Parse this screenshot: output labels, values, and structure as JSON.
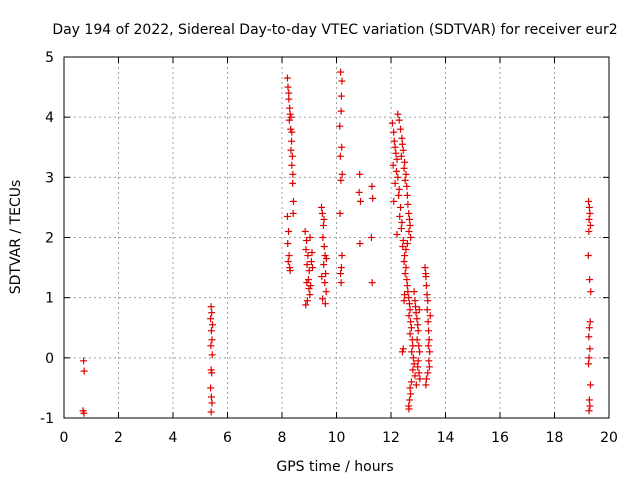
{
  "chart_data": {
    "type": "scatter",
    "title": "Day 194 of 2022, Sidereal Day-to-day VTEC variation (SDTVAR) for receiver eur2",
    "xlabel": "GPS time / hours",
    "ylabel": "SDTVAR / TECUs",
    "xlim": [
      0,
      20
    ],
    "ylim": [
      -1,
      5
    ],
    "xticks": [
      "0",
      "2",
      "4",
      "6",
      "8",
      "10",
      "12",
      "14",
      "16",
      "18",
      "20"
    ],
    "yticks": [
      "-1",
      "0",
      "1",
      "2",
      "3",
      "4",
      "5"
    ],
    "grid": true,
    "marker": "+",
    "color": "#e00000",
    "series": [
      {
        "name": "SDTVAR",
        "points": [
          [
            0.72,
            -0.05
          ],
          [
            0.74,
            -0.22
          ],
          [
            0.7,
            -0.88
          ],
          [
            0.73,
            -0.92
          ],
          [
            5.4,
            0.85
          ],
          [
            5.42,
            0.75
          ],
          [
            5.38,
            0.65
          ],
          [
            5.45,
            0.55
          ],
          [
            5.41,
            0.45
          ],
          [
            5.43,
            0.3
          ],
          [
            5.39,
            0.2
          ],
          [
            5.44,
            0.05
          ],
          [
            5.4,
            -0.2
          ],
          [
            5.42,
            -0.25
          ],
          [
            5.38,
            -0.5
          ],
          [
            5.41,
            -0.65
          ],
          [
            5.43,
            -0.75
          ],
          [
            5.4,
            -0.9
          ],
          [
            8.2,
            4.65
          ],
          [
            8.22,
            4.5
          ],
          [
            8.25,
            4.3
          ],
          [
            8.28,
            4.15
          ],
          [
            8.3,
            4.05
          ],
          [
            8.27,
            3.95
          ],
          [
            8.32,
            3.8
          ],
          [
            8.35,
            3.6
          ],
          [
            8.33,
            3.45
          ],
          [
            8.38,
            3.35
          ],
          [
            8.36,
            3.2
          ],
          [
            8.4,
            3.05
          ],
          [
            8.39,
            2.9
          ],
          [
            8.42,
            2.6
          ],
          [
            8.41,
            2.4
          ],
          [
            8.2,
            2.35
          ],
          [
            8.24,
            2.1
          ],
          [
            8.21,
            1.9
          ],
          [
            8.26,
            1.7
          ],
          [
            8.23,
            1.6
          ],
          [
            8.28,
            1.5
          ],
          [
            8.3,
            1.45
          ],
          [
            8.33,
            4.0
          ],
          [
            8.36,
            3.75
          ],
          [
            8.25,
            4.4
          ],
          [
            8.85,
            2.1
          ],
          [
            8.9,
            1.95
          ],
          [
            8.88,
            1.8
          ],
          [
            8.95,
            1.7
          ],
          [
            8.92,
            1.55
          ],
          [
            9.0,
            1.45
          ],
          [
            8.97,
            1.3
          ],
          [
            9.05,
            1.2
          ],
          [
            9.02,
            1.05
          ],
          [
            8.93,
            0.95
          ],
          [
            8.87,
            0.88
          ],
          [
            9.08,
            1.6
          ],
          [
            9.1,
            1.75
          ],
          [
            9.12,
            1.5
          ],
          [
            8.99,
            1.15
          ],
          [
            9.03,
            2.0
          ],
          [
            8.91,
            1.25
          ],
          [
            9.45,
            2.5
          ],
          [
            9.48,
            2.4
          ],
          [
            9.52,
            2.2
          ],
          [
            9.5,
            2.0
          ],
          [
            9.55,
            1.85
          ],
          [
            9.58,
            1.7
          ],
          [
            9.53,
            1.55
          ],
          [
            9.6,
            1.4
          ],
          [
            9.57,
            1.25
          ],
          [
            9.62,
            1.1
          ],
          [
            9.49,
            0.98
          ],
          [
            9.63,
            1.65
          ],
          [
            9.46,
            1.35
          ],
          [
            9.54,
            2.3
          ],
          [
            9.59,
            0.9
          ],
          [
            10.15,
            4.75
          ],
          [
            10.2,
            4.6
          ],
          [
            10.18,
            4.35
          ],
          [
            10.17,
            4.1
          ],
          [
            10.12,
            3.85
          ],
          [
            10.19,
            3.5
          ],
          [
            10.14,
            3.35
          ],
          [
            10.21,
            3.05
          ],
          [
            10.16,
            2.95
          ],
          [
            10.13,
            2.4
          ],
          [
            10.2,
            1.7
          ],
          [
            10.18,
            1.5
          ],
          [
            10.15,
            1.4
          ],
          [
            10.17,
            1.25
          ],
          [
            10.85,
            3.05
          ],
          [
            10.83,
            2.75
          ],
          [
            10.88,
            2.6
          ],
          [
            10.86,
            1.9
          ],
          [
            11.3,
            2.85
          ],
          [
            11.33,
            2.65
          ],
          [
            11.28,
            2.0
          ],
          [
            11.31,
            1.25
          ],
          [
            12.05,
            3.9
          ],
          [
            12.1,
            3.75
          ],
          [
            12.12,
            3.6
          ],
          [
            12.15,
            3.5
          ],
          [
            12.18,
            3.4
          ],
          [
            12.22,
            3.3
          ],
          [
            12.08,
            3.2
          ],
          [
            12.2,
            3.1
          ],
          [
            12.25,
            3.0
          ],
          [
            12.15,
            2.9
          ],
          [
            12.3,
            2.8
          ],
          [
            12.28,
            2.7
          ],
          [
            12.1,
            2.6
          ],
          [
            12.35,
            2.5
          ],
          [
            12.32,
            2.35
          ],
          [
            12.4,
            2.25
          ],
          [
            12.38,
            2.15
          ],
          [
            12.22,
            2.05
          ],
          [
            12.45,
            1.95
          ],
          [
            12.43,
            1.85
          ],
          [
            12.5,
            1.7
          ],
          [
            12.48,
            1.6
          ],
          [
            12.55,
            1.5
          ],
          [
            12.52,
            1.4
          ],
          [
            12.58,
            1.3
          ],
          [
            12.6,
            1.2
          ],
          [
            12.62,
            1.1
          ],
          [
            12.65,
            1.0
          ],
          [
            12.68,
            0.9
          ],
          [
            12.7,
            0.8
          ],
          [
            12.66,
            0.7
          ],
          [
            12.72,
            0.6
          ],
          [
            12.75,
            0.5
          ],
          [
            12.7,
            0.4
          ],
          [
            12.78,
            0.3
          ],
          [
            12.8,
            0.2
          ],
          [
            12.76,
            0.1
          ],
          [
            12.82,
            0.0
          ],
          [
            12.85,
            -0.1
          ],
          [
            12.8,
            -0.2
          ],
          [
            12.88,
            -0.3
          ],
          [
            12.75,
            -0.4
          ],
          [
            12.7,
            -0.5
          ],
          [
            12.72,
            -0.6
          ],
          [
            12.68,
            -0.7
          ],
          [
            12.65,
            -0.8
          ],
          [
            12.66,
            -0.85
          ],
          [
            12.25,
            4.05
          ],
          [
            12.3,
            3.95
          ],
          [
            12.35,
            3.8
          ],
          [
            12.4,
            3.65
          ],
          [
            12.42,
            3.55
          ],
          [
            12.45,
            3.45
          ],
          [
            12.38,
            3.35
          ],
          [
            12.5,
            3.25
          ],
          [
            12.48,
            3.15
          ],
          [
            12.55,
            3.05
          ],
          [
            12.52,
            2.95
          ],
          [
            12.58,
            2.85
          ],
          [
            12.6,
            2.7
          ],
          [
            12.62,
            2.55
          ],
          [
            12.65,
            2.4
          ],
          [
            12.68,
            2.3
          ],
          [
            12.7,
            2.2
          ],
          [
            12.66,
            2.1
          ],
          [
            12.72,
            2.0
          ],
          [
            12.6,
            1.9
          ],
          [
            12.55,
            1.8
          ],
          [
            12.5,
            1.05
          ],
          [
            12.48,
            0.95
          ],
          [
            12.45,
            0.15
          ],
          [
            12.42,
            0.1
          ],
          [
            12.85,
            1.1
          ],
          [
            12.88,
            0.95
          ],
          [
            12.9,
            0.85
          ],
          [
            12.92,
            0.75
          ],
          [
            12.95,
            0.65
          ],
          [
            12.98,
            0.55
          ],
          [
            13.0,
            0.45
          ],
          [
            12.96,
            0.3
          ],
          [
            13.02,
            0.2
          ],
          [
            13.05,
            0.1
          ],
          [
            13.0,
            -0.05
          ],
          [
            12.98,
            -0.15
          ],
          [
            13.03,
            -0.25
          ],
          [
            13.06,
            -0.35
          ],
          [
            12.93,
            -0.45
          ],
          [
            13.04,
            0.8
          ],
          [
            13.25,
            1.5
          ],
          [
            13.28,
            1.35
          ],
          [
            13.3,
            1.2
          ],
          [
            13.32,
            1.05
          ],
          [
            13.35,
            0.95
          ],
          [
            13.33,
            0.8
          ],
          [
            13.36,
            0.6
          ],
          [
            13.38,
            0.45
          ],
          [
            13.4,
            0.3
          ],
          [
            13.37,
            0.2
          ],
          [
            13.42,
            0.1
          ],
          [
            13.39,
            -0.05
          ],
          [
            13.41,
            -0.15
          ],
          [
            13.35,
            -0.25
          ],
          [
            13.3,
            -0.35
          ],
          [
            13.28,
            -0.45
          ],
          [
            13.44,
            0.7
          ],
          [
            13.27,
            1.4
          ],
          [
            19.25,
            2.6
          ],
          [
            19.28,
            2.5
          ],
          [
            19.3,
            2.4
          ],
          [
            19.27,
            2.3
          ],
          [
            19.32,
            2.2
          ],
          [
            19.26,
            2.1
          ],
          [
            19.24,
            1.7
          ],
          [
            19.29,
            1.3
          ],
          [
            19.33,
            1.1
          ],
          [
            19.31,
            0.6
          ],
          [
            19.28,
            0.5
          ],
          [
            19.26,
            0.35
          ],
          [
            19.3,
            0.15
          ],
          [
            19.27,
            0.0
          ],
          [
            19.25,
            -0.1
          ],
          [
            19.32,
            -0.45
          ],
          [
            19.28,
            -0.7
          ],
          [
            19.3,
            -0.8
          ],
          [
            19.27,
            -0.88
          ]
        ]
      }
    ]
  }
}
